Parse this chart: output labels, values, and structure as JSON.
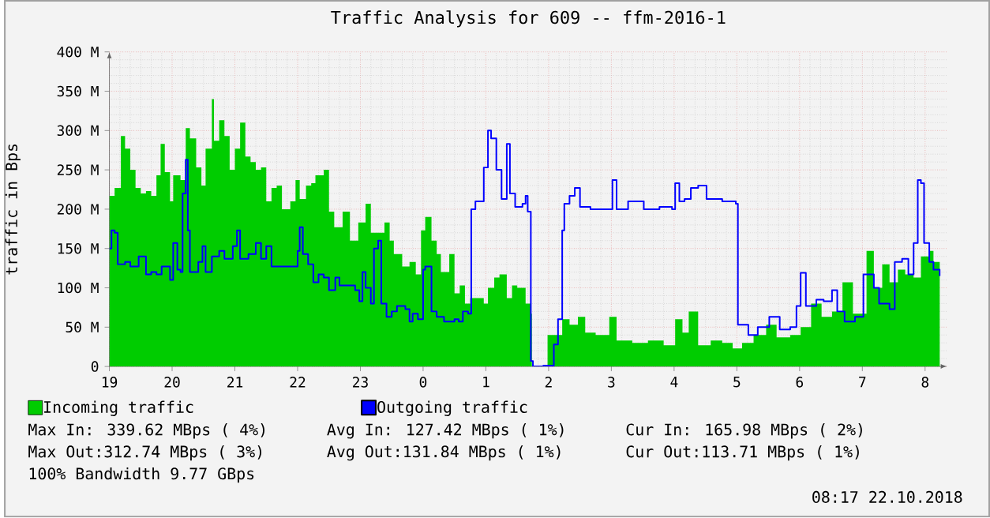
{
  "chart_data": {
    "type": "area",
    "title": "Traffic Analysis for 609 -- ffm-2016-1",
    "ylabel": "traffic in Bps",
    "xlim": [
      "2018-10-21T19:00",
      "2018-10-22T08:21"
    ],
    "ylim": [
      0,
      400
    ],
    "xticks": [
      {
        "value": "2018-10-21T19:00",
        "label": "19"
      },
      {
        "value": "2018-10-21T20:00",
        "label": "20"
      },
      {
        "value": "2018-10-21T21:00",
        "label": "21"
      },
      {
        "value": "2018-10-21T22:00",
        "label": "22"
      },
      {
        "value": "2018-10-21T23:00",
        "label": "23"
      },
      {
        "value": "2018-10-22T00:00",
        "label": "0"
      },
      {
        "value": "2018-10-22T01:00",
        "label": "1"
      },
      {
        "value": "2018-10-22T02:00",
        "label": "2"
      },
      {
        "value": "2018-10-22T03:00",
        "label": "3"
      },
      {
        "value": "2018-10-22T04:00",
        "label": "4"
      },
      {
        "value": "2018-10-22T05:00",
        "label": "5"
      },
      {
        "value": "2018-10-22T06:00",
        "label": "6"
      },
      {
        "value": "2018-10-22T07:00",
        "label": "7"
      },
      {
        "value": "2018-10-22T08:00",
        "label": "8"
      }
    ],
    "yticks": [
      {
        "value": 0,
        "label": "0"
      },
      {
        "value": 50,
        "label": "50 M"
      },
      {
        "value": 100,
        "label": "100 M"
      },
      {
        "value": 150,
        "label": "150 M"
      },
      {
        "value": 200,
        "label": "200 M"
      },
      {
        "value": 250,
        "label": "250 M"
      },
      {
        "value": 300,
        "label": "300 M"
      },
      {
        "value": 350,
        "label": "350 M"
      },
      {
        "value": 400,
        "label": "400 M"
      }
    ],
    "grid": true,
    "legend": "bottom",
    "series": [
      {
        "name": "Incoming traffic",
        "color": "#00cc00",
        "x": [
          "2018-10-21T19:00",
          "2018-10-21T19:05",
          "2018-10-21T19:11",
          "2018-10-21T19:15",
          "2018-10-21T19:20",
          "2018-10-21T19:25",
          "2018-10-21T19:30",
          "2018-10-21T19:35",
          "2018-10-21T19:40",
          "2018-10-21T19:45",
          "2018-10-21T19:49",
          "2018-10-21T19:53",
          "2018-10-21T19:58",
          "2018-10-21T20:01",
          "2018-10-21T20:08",
          "2018-10-21T20:13",
          "2018-10-21T20:17",
          "2018-10-21T20:23",
          "2018-10-21T20:28",
          "2018-10-21T20:32",
          "2018-10-21T20:38",
          "2018-10-21T20:40",
          "2018-10-21T20:45",
          "2018-10-21T20:50",
          "2018-10-21T20:55",
          "2018-10-21T21:00",
          "2018-10-21T21:05",
          "2018-10-21T21:10",
          "2018-10-21T21:15",
          "2018-10-21T21:20",
          "2018-10-21T21:25",
          "2018-10-21T21:30",
          "2018-10-21T21:35",
          "2018-10-21T21:40",
          "2018-10-21T21:45",
          "2018-10-21T21:53",
          "2018-10-21T21:58",
          "2018-10-21T22:02",
          "2018-10-21T22:08",
          "2018-10-21T22:13",
          "2018-10-21T22:17",
          "2018-10-21T22:25",
          "2018-10-21T22:30",
          "2018-10-21T22:35",
          "2018-10-21T22:43",
          "2018-10-21T22:50",
          "2018-10-21T22:58",
          "2018-10-21T23:05",
          "2018-10-21T23:10",
          "2018-10-21T23:17",
          "2018-10-21T23:23",
          "2018-10-21T23:28",
          "2018-10-21T23:32",
          "2018-10-21T23:40",
          "2018-10-21T23:47",
          "2018-10-21T23:53",
          "2018-10-21T23:58",
          "2018-10-22T00:02",
          "2018-10-22T00:08",
          "2018-10-22T00:13",
          "2018-10-22T00:17",
          "2018-10-22T00:25",
          "2018-10-22T00:30",
          "2018-10-22T00:35",
          "2018-10-22T00:40",
          "2018-10-22T00:45",
          "2018-10-22T00:53",
          "2018-10-22T00:58",
          "2018-10-22T01:02",
          "2018-10-22T01:08",
          "2018-10-22T01:13",
          "2018-10-22T01:20",
          "2018-10-22T01:25",
          "2018-10-22T01:30",
          "2018-10-22T01:38",
          "2018-10-22T01:43",
          "2018-10-22T01:44",
          "2018-10-22T01:58",
          "2018-10-22T01:59",
          "2018-10-22T02:05",
          "2018-10-22T02:13",
          "2018-10-22T02:20",
          "2018-10-22T02:28",
          "2018-10-22T02:35",
          "2018-10-22T02:45",
          "2018-10-22T02:58",
          "2018-10-22T03:05",
          "2018-10-22T03:20",
          "2018-10-22T03:35",
          "2018-10-22T03:50",
          "2018-10-22T04:01",
          "2018-10-22T04:08",
          "2018-10-22T04:14",
          "2018-10-22T04:23",
          "2018-10-22T04:35",
          "2018-10-22T04:46",
          "2018-10-22T04:56",
          "2018-10-22T05:05",
          "2018-10-22T05:16",
          "2018-10-22T05:28",
          "2018-10-22T05:38",
          "2018-10-22T05:51",
          "2018-10-22T06:01",
          "2018-10-22T06:11",
          "2018-10-22T06:21",
          "2018-10-22T06:31",
          "2018-10-22T06:41",
          "2018-10-22T06:51",
          "2018-10-22T07:04",
          "2018-10-22T07:11",
          "2018-10-22T07:19",
          "2018-10-22T07:26",
          "2018-10-22T07:34",
          "2018-10-22T07:41",
          "2018-10-22T07:49",
          "2018-10-22T07:56",
          "2018-10-22T08:04",
          "2018-10-22T08:08",
          "2018-10-22T08:14"
        ],
        "values": [
          217,
          227,
          293,
          277,
          250,
          227,
          220,
          223,
          217,
          243,
          283,
          247,
          210,
          243,
          237,
          303,
          290,
          253,
          230,
          277,
          340,
          287,
          313,
          293,
          250,
          277,
          310,
          267,
          260,
          250,
          253,
          210,
          227,
          230,
          200,
          210,
          237,
          213,
          230,
          233,
          243,
          250,
          197,
          177,
          197,
          160,
          183,
          207,
          170,
          170,
          183,
          160,
          143,
          127,
          133,
          117,
          173,
          190,
          160,
          143,
          120,
          143,
          93,
          103,
          80,
          87,
          87,
          80,
          100,
          113,
          117,
          87,
          103,
          100,
          80,
          67,
          0,
          0,
          40,
          40,
          60,
          53,
          63,
          43,
          40,
          63,
          33,
          30,
          33,
          27,
          60,
          43,
          70,
          27,
          33,
          30,
          23,
          30,
          40,
          53,
          37,
          40,
          50,
          80,
          63,
          70,
          107,
          67,
          147,
          100,
          130,
          107,
          123,
          117,
          113,
          140,
          147,
          133,
          167
        ]
      },
      {
        "name": "Outgoing traffic",
        "type": "step",
        "color": "#0000ff",
        "x": [
          "2018-10-21T19:00",
          "2018-10-21T19:02",
          "2018-10-21T19:05",
          "2018-10-21T19:08",
          "2018-10-21T19:15",
          "2018-10-21T19:20",
          "2018-10-21T19:28",
          "2018-10-21T19:35",
          "2018-10-21T19:40",
          "2018-10-21T19:45",
          "2018-10-21T19:50",
          "2018-10-21T19:58",
          "2018-10-21T20:01",
          "2018-10-21T20:05",
          "2018-10-21T20:08",
          "2018-10-21T20:10",
          "2018-10-21T20:13",
          "2018-10-21T20:15",
          "2018-10-21T20:17",
          "2018-10-21T20:25",
          "2018-10-21T20:29",
          "2018-10-21T20:32",
          "2018-10-21T20:38",
          "2018-10-21T20:45",
          "2018-10-21T20:50",
          "2018-10-21T20:58",
          "2018-10-21T21:02",
          "2018-10-21T21:05",
          "2018-10-21T21:13",
          "2018-10-21T21:20",
          "2018-10-21T21:25",
          "2018-10-21T21:30",
          "2018-10-21T21:35",
          "2018-10-21T21:50",
          "2018-10-21T21:58",
          "2018-10-21T22:00",
          "2018-10-21T22:02",
          "2018-10-21T22:05",
          "2018-10-21T22:10",
          "2018-10-21T22:15",
          "2018-10-21T22:20",
          "2018-10-21T22:25",
          "2018-10-21T22:30",
          "2018-10-21T22:36",
          "2018-10-21T22:40",
          "2018-10-21T22:50",
          "2018-10-21T22:55",
          "2018-10-21T22:59",
          "2018-10-21T23:02",
          "2018-10-21T23:05",
          "2018-10-21T23:10",
          "2018-10-21T23:13",
          "2018-10-21T23:17",
          "2018-10-21T23:20",
          "2018-10-21T23:25",
          "2018-10-21T23:30",
          "2018-10-21T23:35",
          "2018-10-21T23:43",
          "2018-10-21T23:47",
          "2018-10-21T23:50",
          "2018-10-21T23:55",
          "2018-10-22T00:00",
          "2018-10-22T00:02",
          "2018-10-22T00:08",
          "2018-10-22T00:13",
          "2018-10-22T00:20",
          "2018-10-22T00:30",
          "2018-10-22T00:34",
          "2018-10-22T00:38",
          "2018-10-22T00:43",
          "2018-10-22T00:46",
          "2018-10-22T00:50",
          "2018-10-22T00:58",
          "2018-10-22T01:02",
          "2018-10-22T01:05",
          "2018-10-22T01:10",
          "2018-10-22T01:15",
          "2018-10-22T01:20",
          "2018-10-22T01:23",
          "2018-10-22T01:28",
          "2018-10-22T01:35",
          "2018-10-22T01:38",
          "2018-10-22T01:40",
          "2018-10-22T01:43",
          "2018-10-22T01:45",
          "2018-10-22T01:55",
          "2018-10-22T02:05",
          "2018-10-22T02:09",
          "2018-10-22T02:13",
          "2018-10-22T02:15",
          "2018-10-22T02:20",
          "2018-10-22T02:25",
          "2018-10-22T02:30",
          "2018-10-22T02:40",
          "2018-10-22T02:50",
          "2018-10-22T03:01",
          "2018-10-22T03:05",
          "2018-10-22T03:16",
          "2018-10-22T03:31",
          "2018-10-22T03:46",
          "2018-10-22T03:58",
          "2018-10-22T04:01",
          "2018-10-22T04:05",
          "2018-10-22T04:10",
          "2018-10-22T04:16",
          "2018-10-22T04:23",
          "2018-10-22T04:31",
          "2018-10-22T04:46",
          "2018-10-22T04:59",
          "2018-10-22T05:01",
          "2018-10-22T05:11",
          "2018-10-22T05:20",
          "2018-10-22T05:31",
          "2018-10-22T05:41",
          "2018-10-22T05:51",
          "2018-10-22T05:57",
          "2018-10-22T06:01",
          "2018-10-22T06:06",
          "2018-10-22T06:16",
          "2018-10-22T06:23",
          "2018-10-22T06:31",
          "2018-10-22T06:36",
          "2018-10-22T06:43",
          "2018-10-22T06:53",
          "2018-10-22T07:01",
          "2018-10-22T07:11",
          "2018-10-22T07:16",
          "2018-10-22T07:26",
          "2018-10-22T07:31",
          "2018-10-22T07:38",
          "2018-10-22T07:44",
          "2018-10-22T07:49",
          "2018-10-22T07:53",
          "2018-10-22T07:56",
          "2018-10-22T07:59",
          "2018-10-22T08:04",
          "2018-10-22T08:08",
          "2018-10-22T08:14"
        ],
        "values": [
          150,
          173,
          170,
          130,
          133,
          127,
          140,
          117,
          120,
          117,
          127,
          110,
          157,
          123,
          120,
          220,
          263,
          173,
          120,
          133,
          153,
          120,
          140,
          147,
          137,
          153,
          173,
          137,
          143,
          157,
          137,
          153,
          127,
          127,
          127,
          147,
          177,
          143,
          130,
          107,
          117,
          113,
          97,
          113,
          103,
          103,
          97,
          83,
          120,
          100,
          80,
          150,
          160,
          80,
          63,
          70,
          77,
          73,
          57,
          67,
          60,
          123,
          127,
          70,
          63,
          57,
          60,
          57,
          70,
          67,
          200,
          210,
          253,
          300,
          290,
          250,
          213,
          283,
          220,
          203,
          207,
          217,
          197,
          7,
          0,
          1,
          28,
          60,
          173,
          207,
          217,
          227,
          203,
          200,
          200,
          237,
          200,
          210,
          200,
          203,
          200,
          233,
          210,
          213,
          227,
          230,
          213,
          210,
          207,
          53,
          40,
          50,
          63,
          47,
          50,
          77,
          119,
          77,
          85,
          83,
          97,
          70,
          57,
          63,
          117,
          100,
          80,
          73,
          133,
          137,
          117,
          157,
          237,
          233,
          157,
          133,
          123,
          115
        ]
      }
    ],
    "annotations": [
      "Max In: 339.62 MBps ( 4%)",
      "Avg In: 127.42 MBps ( 1%)",
      "Cur In: 165.98 MBps ( 2%)",
      "Max Out:312.74 MBps ( 3%)",
      "Avg Out:131.84 MBps ( 1%)",
      "Cur Out:113.71 MBps ( 1%)",
      "100% Bandwidth 9.77 GBps",
      "08:17 22.10.2018"
    ]
  }
}
